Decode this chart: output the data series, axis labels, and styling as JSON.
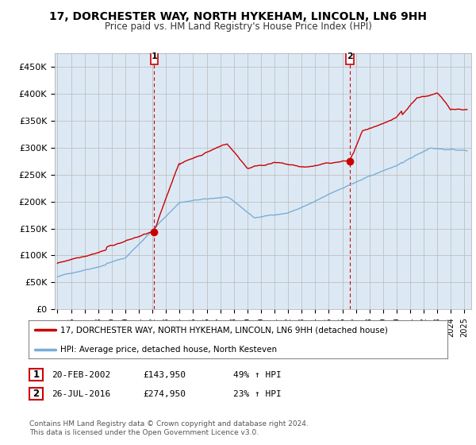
{
  "title": "17, DORCHESTER WAY, NORTH HYKEHAM, LINCOLN, LN6 9HH",
  "subtitle": "Price paid vs. HM Land Registry's House Price Index (HPI)",
  "ylabel_ticks": [
    "£0",
    "£50K",
    "£100K",
    "£150K",
    "£200K",
    "£250K",
    "£300K",
    "£350K",
    "£400K",
    "£450K"
  ],
  "ytick_values": [
    0,
    50000,
    100000,
    150000,
    200000,
    250000,
    300000,
    350000,
    400000,
    450000
  ],
  "ylim": [
    0,
    475000
  ],
  "xlim_start": 1994.8,
  "xlim_end": 2025.5,
  "sale1_x": 2002.13,
  "sale1_y": 143950,
  "sale2_x": 2016.56,
  "sale2_y": 274950,
  "marker1_label": "1",
  "marker2_label": "2",
  "hpi_color": "#7aaed6",
  "price_color": "#cc0000",
  "dashed_color": "#cc0000",
  "legend1_text": "17, DORCHESTER WAY, NORTH HYKEHAM, LINCOLN, LN6 9HH (detached house)",
  "legend2_text": "HPI: Average price, detached house, North Kesteven",
  "table_row1": [
    "1",
    "20-FEB-2002",
    "£143,950",
    "49% ↑ HPI"
  ],
  "table_row2": [
    "2",
    "26-JUL-2016",
    "£274,950",
    "23% ↑ HPI"
  ],
  "footer": "Contains HM Land Registry data © Crown copyright and database right 2024.\nThis data is licensed under the Open Government Licence v3.0.",
  "plot_bg_color": "#dce9f5",
  "grid_color": "#b0c8e0"
}
